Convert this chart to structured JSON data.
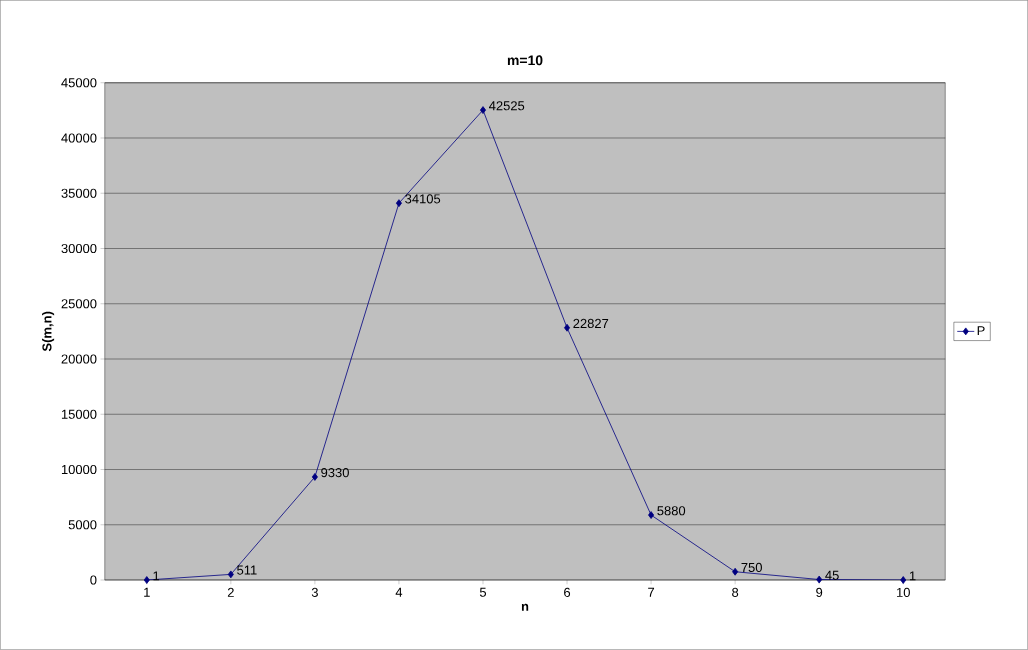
{
  "chart_data": {
    "type": "line",
    "title": "m=10",
    "xlabel": "n",
    "ylabel": "S(m,n)",
    "categories": [
      "1",
      "2",
      "3",
      "4",
      "5",
      "6",
      "7",
      "8",
      "9",
      "10"
    ],
    "series": [
      {
        "name": "P",
        "color": "#000080",
        "values": [
          1,
          511,
          9330,
          34105,
          42525,
          22827,
          5880,
          750,
          45,
          1
        ]
      }
    ],
    "ylim": [
      0,
      45000
    ],
    "yticks": [
      0,
      5000,
      10000,
      15000,
      20000,
      25000,
      30000,
      35000,
      40000,
      45000
    ],
    "grid": "y",
    "legend": "right",
    "marker": "diamond",
    "line_style": "solid",
    "data_labels": true
  }
}
